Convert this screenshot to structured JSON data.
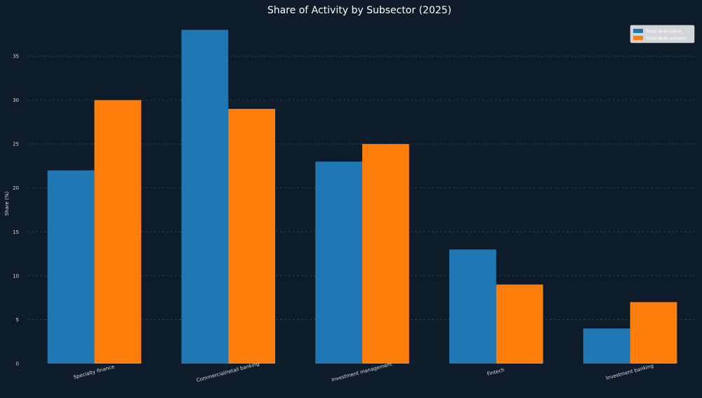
{
  "chart_data": {
    "type": "bar",
    "title": "Share of Activity by Subsector (2025)",
    "xlabel": "",
    "ylabel": "Share (%)",
    "ylim": [
      0,
      39
    ],
    "yticks": [
      0,
      5,
      10,
      15,
      20,
      25,
      30,
      35
    ],
    "grid": true,
    "legend_position": "top-right",
    "categories": [
      "Specialty finance",
      "Commercial/retail banking",
      "Investment management",
      "Fintech",
      "Investment banking"
    ],
    "series": [
      {
        "name": "Total deal value",
        "color": "#1f77b4",
        "values": [
          22,
          38,
          23,
          13,
          4
        ]
      },
      {
        "name": "Total deal volume",
        "color": "#ff7f0e",
        "values": [
          30,
          29,
          25,
          9,
          7
        ]
      }
    ]
  }
}
